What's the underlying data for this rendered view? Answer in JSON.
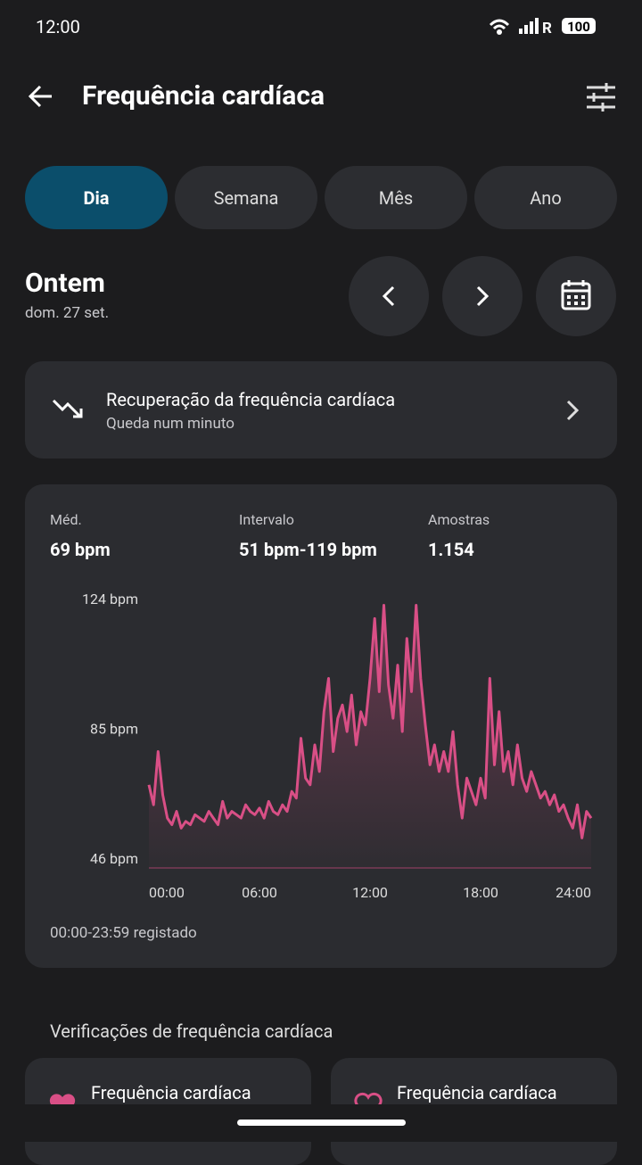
{
  "status_bar": {
    "time": "12:00",
    "battery": "100"
  },
  "header": {
    "title": "Frequência cardíaca"
  },
  "tabs": [
    "Dia",
    "Semana",
    "Mês",
    "Ano"
  ],
  "date": {
    "title": "Ontem",
    "subtitle": "dom. 27 set."
  },
  "recovery_card": {
    "title": "Recuperação da frequência cardíaca",
    "subtitle": "Queda num minuto"
  },
  "stats": [
    {
      "label": "Méd.",
      "value": "69 bpm"
    },
    {
      "label": "Intervalo",
      "value": "51 bpm-119 bpm"
    },
    {
      "label": "Amostras",
      "value": "1.154"
    }
  ],
  "chart_data": {
    "type": "line",
    "x": [
      0,
      0.25,
      0.5,
      0.75,
      1,
      1.25,
      1.5,
      1.75,
      2,
      2.25,
      2.5,
      2.75,
      3,
      3.25,
      3.5,
      3.75,
      4,
      4.25,
      4.5,
      4.75,
      5,
      5.25,
      5.5,
      5.75,
      6,
      6.25,
      6.5,
      6.75,
      7,
      7.25,
      7.5,
      7.75,
      8,
      8.25,
      8.5,
      8.75,
      9,
      9.25,
      9.5,
      9.75,
      10,
      10.25,
      10.5,
      10.75,
      11,
      11.25,
      11.5,
      11.75,
      12,
      12.25,
      12.5,
      12.75,
      13,
      13.25,
      13.5,
      13.75,
      14,
      14.25,
      14.5,
      14.75,
      15,
      15.25,
      15.5,
      15.75,
      16,
      16.25,
      16.5,
      16.75,
      17,
      17.25,
      17.5,
      17.75,
      18,
      18.25,
      18.5,
      18.75,
      19,
      19.25,
      19.5,
      19.75,
      20,
      20.25,
      20.5,
      20.75,
      21,
      21.25,
      21.5,
      21.75,
      22,
      22.25,
      22.5,
      22.75,
      23,
      23.25,
      23.5,
      23.75,
      24
    ],
    "series": [
      {
        "color": "#d94f86",
        "values": [
          68,
          62,
          78,
          65,
          58,
          56,
          60,
          55,
          57,
          56,
          59,
          58,
          57,
          60,
          58,
          56,
          63,
          58,
          60,
          59,
          58,
          62,
          60,
          59,
          61,
          58,
          63,
          60,
          59,
          62,
          60,
          66,
          64,
          82,
          70,
          68,
          80,
          72,
          90,
          100,
          78,
          88,
          92,
          84,
          95,
          80,
          90,
          86,
          100,
          118,
          96,
          122,
          98,
          88,
          104,
          84,
          112,
          96,
          122,
          100,
          86,
          74,
          80,
          72,
          78,
          72,
          84,
          68,
          58,
          70,
          66,
          62,
          70,
          64,
          100,
          74,
          90,
          72,
          78,
          68,
          80,
          70,
          66,
          72,
          68,
          64,
          66,
          62,
          65,
          60,
          62,
          58,
          55,
          62,
          52,
          60,
          58
        ]
      }
    ],
    "xlim": [
      0,
      24
    ],
    "xticks": [
      {
        "value": 0,
        "label": "00:00"
      },
      {
        "value": 6,
        "label": "06:00"
      },
      {
        "value": 12,
        "label": "12:00"
      },
      {
        "value": 18,
        "label": "18:00"
      },
      {
        "value": 24,
        "label": "24:00"
      }
    ],
    "ylim": [
      43,
      124
    ],
    "yticks": [
      {
        "value": 46,
        "label": "46 bpm"
      },
      {
        "value": 85,
        "label": "85 bpm"
      },
      {
        "value": 124,
        "label": "124 bpm"
      }
    ]
  },
  "chart_footer": "00:00-23:59 registado",
  "checks": {
    "title": "Verificações de frequência cardíaca",
    "cards": [
      "Frequência cardíaca",
      "Frequência cardíaca"
    ]
  }
}
